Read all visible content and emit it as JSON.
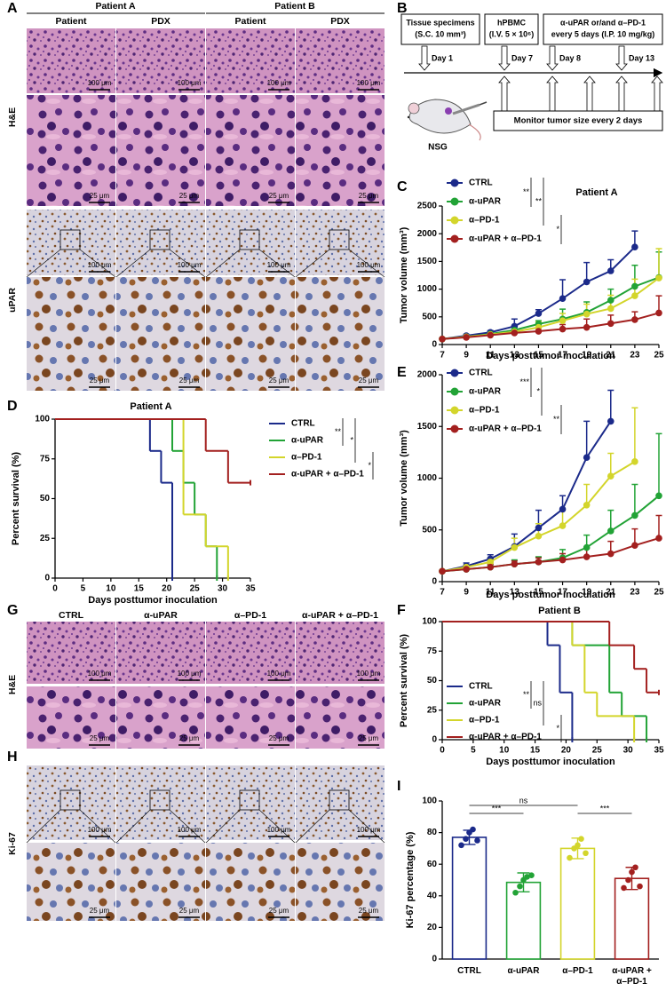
{
  "figure": {
    "A": {
      "letter": "A",
      "groups": [
        "Patient A",
        "Patient B"
      ],
      "columns": [
        "Patient",
        "PDX",
        "Patient",
        "PDX"
      ],
      "rows": [
        "H&E",
        "uPAR"
      ],
      "scale_low": "100 μm",
      "scale_high": "25 μm"
    },
    "B": {
      "letter": "B",
      "boxes": [
        [
          "Tissue specimens",
          "(S.C. 10 mm³)"
        ],
        [
          "hPBMC",
          "(I.V. 5 × 10⁶)"
        ],
        [
          "α-uPAR or/and α–PD-1",
          "every 5 days (I.P. 10 mg/kg)"
        ]
      ],
      "days": [
        "Day 1",
        "Day 7",
        "Day 8",
        "Day 13"
      ],
      "mouse": "NSG",
      "monitor": "Monitor tumor size every 2 days"
    },
    "G": {
      "letter": "G",
      "columns": [
        "CTRL",
        "α-uPAR",
        "α–PD-1",
        "α-uPAR + α–PD-1"
      ],
      "row": "H&E",
      "scale_low": "100 μm",
      "scale_high": "25 μm"
    },
    "H": {
      "letter": "H",
      "row": "Ki-67",
      "scale_low": "100 μm",
      "scale_high": "25 μm"
    }
  },
  "chart_data": [
    {
      "type": "line",
      "letter": "C",
      "title": "Patient A",
      "x_label": "Days posttumor inoculation",
      "y_label": "Tumor volume (mm³)",
      "x": [
        7,
        9,
        11,
        13,
        15,
        17,
        19,
        21,
        23,
        25
      ],
      "xlim": [
        7,
        25
      ],
      "xticks": [
        7,
        9,
        11,
        13,
        15,
        17,
        19,
        21,
        23,
        25
      ],
      "ylim": [
        0,
        2500
      ],
      "yticks": [
        0,
        500,
        1000,
        1500,
        2000,
        2500
      ],
      "annotations": [
        "**",
        "**",
        "*"
      ],
      "series": [
        {
          "name": "CTRL",
          "color": "#1b2a8a",
          "values": [
            100,
            160,
            220,
            330,
            560,
            830,
            1130,
            1330,
            1760,
            null
          ],
          "errors": [
            15,
            25,
            30,
            130,
            70,
            340,
            350,
            200,
            290,
            null
          ]
        },
        {
          "name": "α-uPAR",
          "color": "#22a336",
          "values": [
            100,
            140,
            190,
            260,
            370,
            460,
            580,
            800,
            1050,
            1210
          ],
          "errors": [
            15,
            20,
            30,
            50,
            60,
            180,
            190,
            200,
            380,
            460
          ]
        },
        {
          "name": "α–PD-1",
          "color": "#d3d52b",
          "values": [
            100,
            140,
            180,
            230,
            310,
            430,
            550,
            650,
            880,
            1200
          ],
          "errors": [
            15,
            20,
            25,
            40,
            100,
            130,
            180,
            240,
            300,
            530
          ]
        },
        {
          "name": "α-uPAR + α–PD-1",
          "color": "#a3201f",
          "values": [
            100,
            130,
            170,
            210,
            240,
            280,
            310,
            380,
            450,
            570
          ],
          "errors": [
            10,
            20,
            25,
            40,
            50,
            80,
            150,
            150,
            140,
            310
          ]
        }
      ]
    },
    {
      "type": "step",
      "letter": "D",
      "title": "Patient A",
      "x_label": "Days posttumor inoculation",
      "y_label": "Percent survival (%)",
      "xlim": [
        0,
        35
      ],
      "xticks": [
        0,
        5,
        10,
        15,
        20,
        25,
        30,
        35
      ],
      "ylim": [
        0,
        100
      ],
      "yticks": [
        0,
        25,
        50,
        75,
        100
      ],
      "annotations": [
        "**",
        "*",
        "*"
      ],
      "series": [
        {
          "name": "CTRL",
          "color": "#1b2a8a",
          "x": [
            0,
            17,
            19,
            21
          ],
          "values": [
            100,
            80,
            60,
            0
          ]
        },
        {
          "name": "α-uPAR",
          "color": "#22a336",
          "x": [
            0,
            21,
            23,
            25,
            27,
            29
          ],
          "values": [
            100,
            80,
            60,
            40,
            20,
            0
          ]
        },
        {
          "name": "α–PD-1",
          "color": "#d3d52b",
          "x": [
            0,
            23,
            27,
            31
          ],
          "values": [
            100,
            40,
            20,
            0
          ]
        },
        {
          "name": "α-uPAR + α–PD-1",
          "color": "#a3201f",
          "x": [
            0,
            27,
            31,
            35
          ],
          "values": [
            100,
            80,
            60,
            60
          ]
        }
      ]
    },
    {
      "type": "line",
      "letter": "E",
      "x_label": "Days posttumor inoculation",
      "y_label": "Tumor volume (mm³)",
      "x": [
        7,
        9,
        11,
        13,
        15,
        17,
        19,
        21,
        23,
        25
      ],
      "xlim": [
        7,
        25
      ],
      "xticks": [
        7,
        9,
        11,
        13,
        15,
        17,
        19,
        21,
        23,
        25
      ],
      "ylim": [
        0,
        2000
      ],
      "yticks": [
        0,
        500,
        1000,
        1500,
        2000
      ],
      "annotations": [
        "***",
        "*",
        "**"
      ],
      "series": [
        {
          "name": "CTRL",
          "color": "#1b2a8a",
          "values": [
            100,
            150,
            220,
            340,
            520,
            700,
            1200,
            1550,
            null,
            null
          ],
          "errors": [
            10,
            30,
            40,
            120,
            170,
            130,
            350,
            300,
            null,
            null
          ]
        },
        {
          "name": "α-uPAR",
          "color": "#22a336",
          "values": [
            100,
            120,
            140,
            170,
            190,
            230,
            330,
            490,
            640,
            830
          ],
          "errors": [
            10,
            20,
            20,
            40,
            50,
            80,
            120,
            200,
            300,
            600
          ]
        },
        {
          "name": "α–PD-1",
          "color": "#d3d52b",
          "values": [
            100,
            140,
            190,
            330,
            440,
            540,
            740,
            1020,
            1160,
            null
          ],
          "errors": [
            10,
            20,
            40,
            90,
            120,
            150,
            200,
            220,
            520,
            null
          ]
        },
        {
          "name": "α-uPAR + α–PD-1",
          "color": "#a3201f",
          "values": [
            100,
            120,
            140,
            170,
            190,
            210,
            240,
            270,
            350,
            420
          ],
          "errors": [
            10,
            20,
            30,
            30,
            40,
            60,
            80,
            120,
            160,
            220
          ]
        }
      ]
    },
    {
      "type": "step",
      "letter": "F",
      "title": "Patient B",
      "x_label": "Days posttumor inoculation",
      "y_label": "Percent survival (%)",
      "xlim": [
        0,
        35
      ],
      "xticks": [
        0,
        5,
        10,
        15,
        20,
        25,
        30,
        35
      ],
      "ylim": [
        0,
        100
      ],
      "yticks": [
        0,
        25,
        50,
        75,
        100
      ],
      "annotations": [
        "**",
        "ns",
        "*"
      ],
      "series": [
        {
          "name": "CTRL",
          "color": "#1b2a8a",
          "x": [
            0,
            17,
            19,
            21
          ],
          "values": [
            100,
            80,
            40,
            0
          ]
        },
        {
          "name": "α-uPAR",
          "color": "#22a336",
          "x": [
            0,
            21,
            27,
            29,
            33
          ],
          "values": [
            100,
            80,
            40,
            20,
            0
          ]
        },
        {
          "name": "α–PD-1",
          "color": "#d3d52b",
          "x": [
            0,
            21,
            23,
            25,
            31
          ],
          "values": [
            100,
            80,
            40,
            20,
            0
          ]
        },
        {
          "name": "α-uPAR + α–PD-1",
          "color": "#a3201f",
          "x": [
            0,
            27,
            31,
            33,
            35
          ],
          "values": [
            100,
            80,
            60,
            40,
            40
          ]
        }
      ]
    },
    {
      "type": "bar",
      "letter": "I",
      "y_label": "Ki-67 percentage (%)",
      "categories": [
        "CTRL",
        "α-uPAR",
        "α–PD-1",
        "α-uPAR + α–PD-1"
      ],
      "colors": [
        "#1b2a8a",
        "#22a336",
        "#d3d52b",
        "#a3201f"
      ],
      "values": [
        77,
        48.5,
        70,
        51
      ],
      "errors": [
        4.5,
        6,
        6.5,
        7
      ],
      "points": [
        [
          72,
          76,
          80,
          82,
          75
        ],
        [
          42,
          46,
          50,
          52,
          53
        ],
        [
          64,
          70,
          72,
          76,
          67
        ],
        [
          45,
          50,
          55,
          58,
          46
        ]
      ],
      "ylim": [
        0,
        100
      ],
      "yticks": [
        0,
        20,
        40,
        60,
        80,
        100
      ],
      "annotations": [
        "***",
        "ns",
        "***"
      ]
    }
  ]
}
